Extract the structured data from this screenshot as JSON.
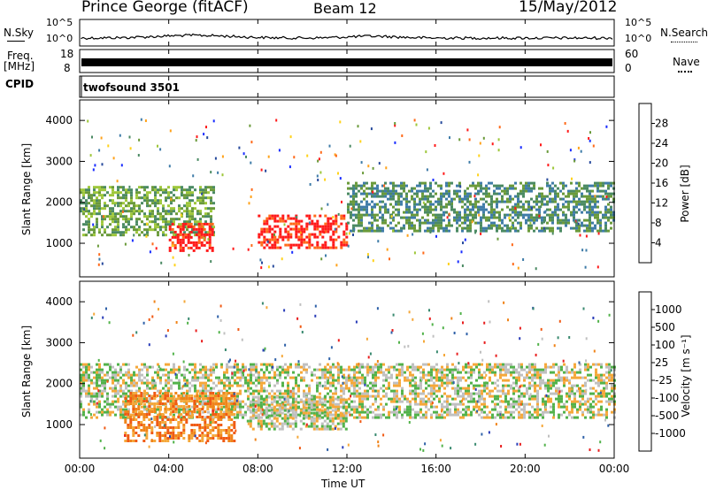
{
  "header": {
    "station": "Prince George (fitACF)",
    "beam": "Beam 12",
    "date": "15/May/2012"
  },
  "param_panels": {
    "nsky_label": "N.Sky",
    "nsky_ticks": [
      "10^5",
      "10^0"
    ],
    "nsearch_label": "N.Search",
    "nsearch_ticks": [
      "10^5",
      "10^0"
    ],
    "freq_label_1": "Freq.",
    "freq_label_2": "[MHz]",
    "freq_ticks": [
      "18",
      "8"
    ],
    "nave_label": "Nave",
    "nave_ticks": [
      "60",
      "0"
    ],
    "cpid_label": "CPID",
    "cpid_value": "twofsound 3501"
  },
  "power_panel": {
    "ylabel": "Slant Range [km]",
    "yticks": [
      "4000",
      "3000",
      "2000",
      "1000"
    ],
    "colorbar_label": "Power [dB]",
    "colorbar_ticks": [
      "28",
      "24",
      "20",
      "16",
      "12",
      "8",
      "4"
    ],
    "colors": [
      "#1a2dff",
      "#274a9c",
      "#3f7ca8",
      "#4b8a63",
      "#6a9a3a",
      "#9ec73a",
      "#ffd21a",
      "#ffa21a",
      "#ff6a1a",
      "#ff1a1a"
    ]
  },
  "velocity_panel": {
    "ylabel": "Slant Range [km]",
    "yticks": [
      "4000",
      "3000",
      "2000",
      "1000"
    ],
    "colorbar_label": "Velocity [m s⁻¹]",
    "colorbar_ticks": [
      "1000",
      "500",
      "100",
      "25",
      "-25",
      "-100",
      "-500",
      "-1000"
    ],
    "colors": [
      "#2a3db8",
      "#2f61a8",
      "#3a8a70",
      "#52b24a",
      "#c0c0c0",
      "#f5a83a",
      "#f0841a",
      "#f05a14",
      "#e81e1e"
    ]
  },
  "xaxis": {
    "ticks": [
      "00:00",
      "04:00",
      "08:00",
      "12:00",
      "16:00",
      "20:00",
      "00:00"
    ],
    "label": "Time UT"
  },
  "chart_data": {
    "type": "heatmap",
    "title": "Prince George (fitACF)  Beam 12  15/May/2012",
    "xlabel": "Time UT",
    "ylabel": "Slant Range [km]",
    "x_range": [
      "00:00",
      "24:00"
    ],
    "y_range": [
      180,
      4500
    ],
    "panels": [
      {
        "name": "Power [dB]",
        "scale": [
          0,
          30
        ],
        "bands": [
          {
            "x": [
              0,
              6
            ],
            "y": [
              1200,
              2400
            ],
            "value": 12
          },
          {
            "x": [
              4,
              6
            ],
            "y": [
              800,
              1500
            ],
            "value": 30
          },
          {
            "x": [
              8,
              12
            ],
            "y": [
              900,
              1700
            ],
            "value": 30
          },
          {
            "x": [
              12,
              24
            ],
            "y": [
              1300,
              2500
            ],
            "value": 10
          }
        ]
      },
      {
        "name": "Velocity [m s-1]",
        "scale": [
          -1000,
          1000
        ],
        "bands": [
          {
            "x": [
              0,
              24
            ],
            "y": [
              1200,
              2500
            ],
            "value": 0
          },
          {
            "x": [
              2,
              7
            ],
            "y": [
              600,
              1800
            ],
            "value": -500
          },
          {
            "x": [
              7.5,
              12
            ],
            "y": [
              900,
              1700
            ],
            "value": 100
          }
        ]
      }
    ]
  }
}
